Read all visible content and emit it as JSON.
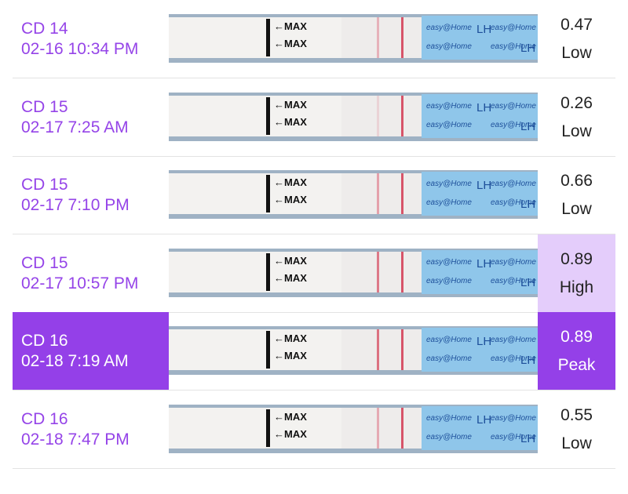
{
  "strip": {
    "marker": "←MAX",
    "brand": "easy@Home",
    "test": "LH"
  },
  "rows": [
    {
      "cd": "CD 14",
      "time": "02-16 10:34 PM",
      "value": 0.47,
      "level": "Low"
    },
    {
      "cd": "CD 15",
      "time": "02-17 7:25 AM",
      "value": 0.26,
      "level": "Low"
    },
    {
      "cd": "CD 15",
      "time": "02-17 7:10 PM",
      "value": 0.66,
      "level": "Low"
    },
    {
      "cd": "CD 15",
      "time": "02-17 10:57 PM",
      "value": 0.89,
      "level": "High"
    },
    {
      "cd": "CD 16",
      "time": "02-18 7:19 AM",
      "value": 0.89,
      "level": "Peak"
    },
    {
      "cd": "CD 16",
      "time": "02-18 7:47 PM",
      "value": 0.55,
      "level": "Low"
    }
  ]
}
